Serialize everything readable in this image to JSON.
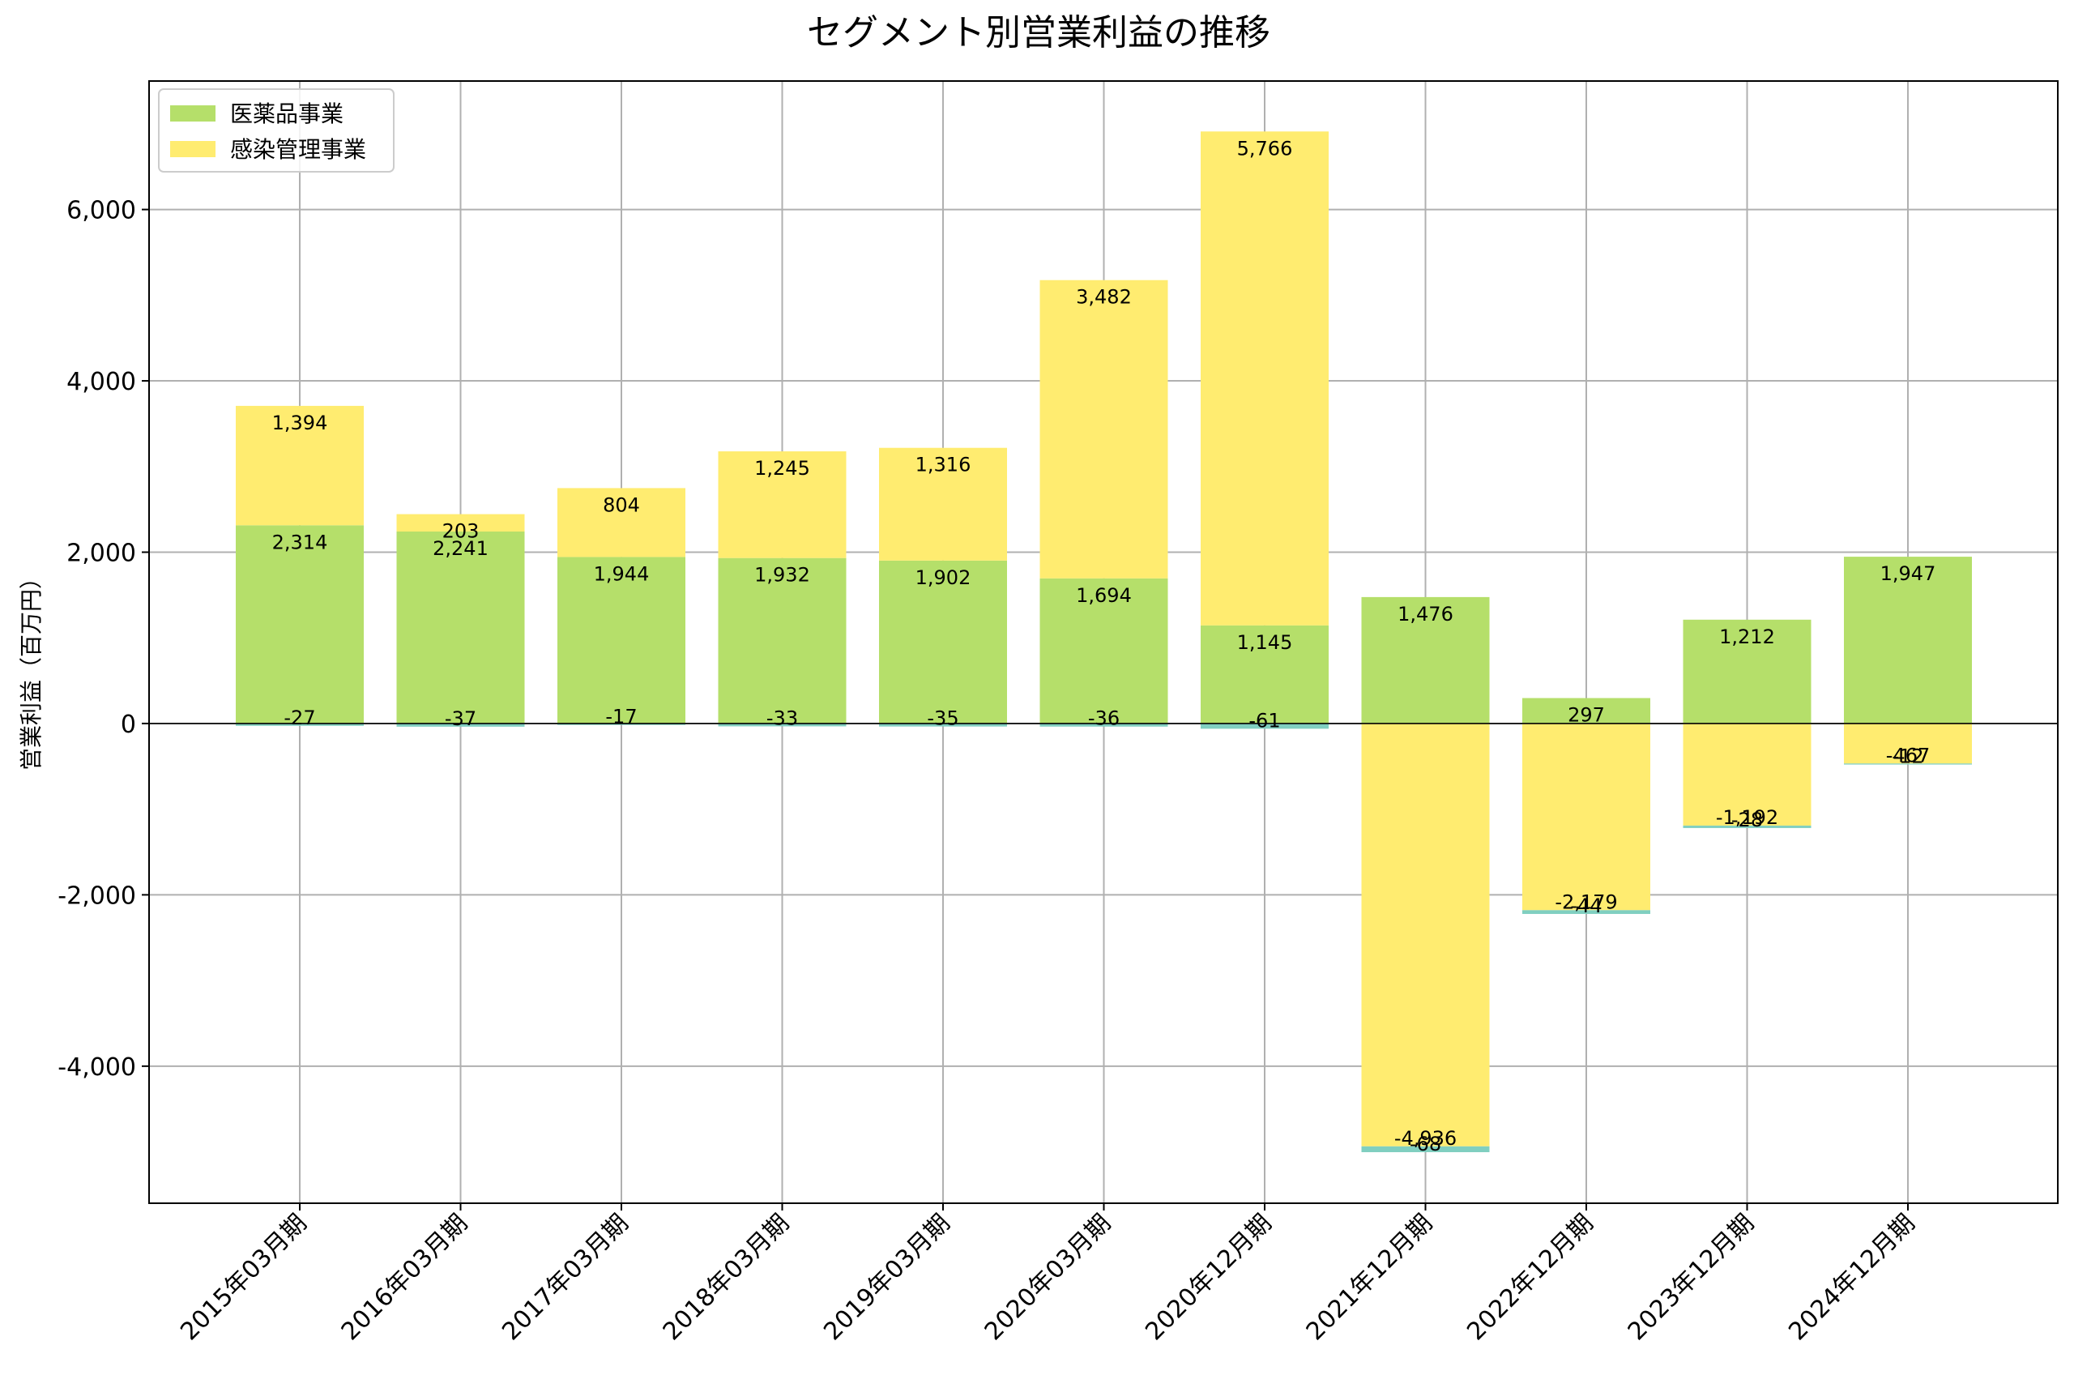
{
  "chart_data": {
    "type": "bar",
    "stacked": true,
    "title": "セグメント別営業利益の推移",
    "ylabel": "営業利益（百万円）",
    "xlabel": "",
    "ylim": [
      -5600,
      7500
    ],
    "yticks": [
      -4000,
      -2000,
      0,
      2000,
      4000,
      6000
    ],
    "grid": true,
    "legend_position": "top-left",
    "categories": [
      "2015年03月期",
      "2016年03月期",
      "2017年03月期",
      "2018年03月期",
      "2019年03月期",
      "2020年03月期",
      "2020年12月期",
      "2021年12月期",
      "2022年12月期",
      "2023年12月期",
      "2024年12月期"
    ],
    "series": [
      {
        "name": "医薬品事業",
        "color": "#b5df6a",
        "values": [
          2314,
          2241,
          1944,
          1932,
          1902,
          1694,
          1145,
          1476,
          297,
          1212,
          1947
        ],
        "in_legend": true
      },
      {
        "name": "感染管理事業",
        "color": "#ffec70",
        "values": [
          1394,
          203,
          804,
          1245,
          1316,
          3482,
          5766,
          -4936,
          -2179,
          -1192,
          -467
        ],
        "in_legend": true
      },
      {
        "name": "",
        "color": "#80cfc0",
        "values": [
          -27,
          -37,
          -17,
          -33,
          -35,
          -36,
          -61,
          -68,
          -44,
          -28,
          -12
        ],
        "in_legend": false
      }
    ]
  }
}
